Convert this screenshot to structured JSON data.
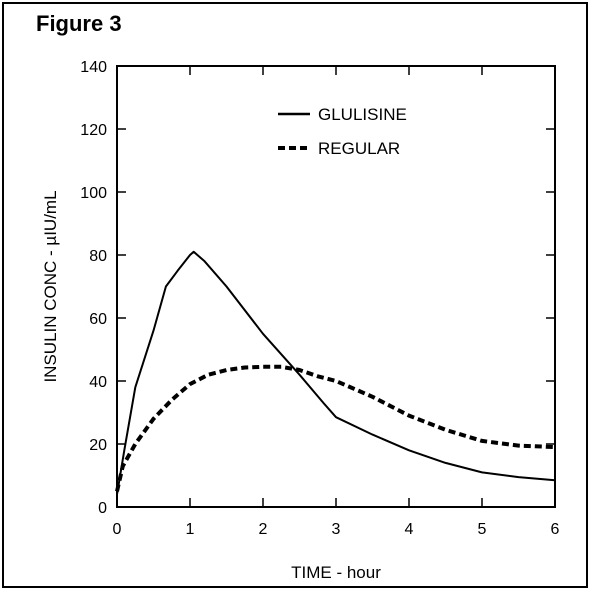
{
  "figure_label": "Figure 3",
  "colors": {
    "line": "#000000",
    "background": "#ffffff"
  },
  "chart_data": {
    "type": "line",
    "title": "",
    "xlabel": "TIME - hour",
    "ylabel": "INSULIN CONC - µIU/mL",
    "xlim": [
      0,
      6
    ],
    "ylim": [
      0,
      140
    ],
    "xticks": [
      0,
      1,
      2,
      3,
      4,
      5,
      6
    ],
    "yticks": [
      0,
      20,
      40,
      60,
      80,
      100,
      120,
      140
    ],
    "grid": false,
    "legend": "top-center",
    "series": [
      {
        "name": "GLULISINE",
        "style": "solid",
        "points": [
          [
            0,
            4
          ],
          [
            0.1,
            18
          ],
          [
            0.25,
            38
          ],
          [
            0.5,
            56
          ],
          [
            0.67,
            70
          ],
          [
            0.83,
            75
          ],
          [
            1.0,
            80
          ],
          [
            1.05,
            81
          ],
          [
            1.2,
            78
          ],
          [
            1.5,
            70
          ],
          [
            2.0,
            55
          ],
          [
            2.5,
            42
          ],
          [
            2.83,
            33
          ],
          [
            3.0,
            28.5
          ],
          [
            3.5,
            23
          ],
          [
            4.0,
            18
          ],
          [
            4.5,
            14
          ],
          [
            5.0,
            11
          ],
          [
            5.5,
            9.5
          ],
          [
            6.0,
            8.5
          ]
        ]
      },
      {
        "name": "REGULAR",
        "style": "dashed",
        "points": [
          [
            0,
            5
          ],
          [
            0.08,
            13
          ],
          [
            0.25,
            20
          ],
          [
            0.5,
            28
          ],
          [
            0.75,
            34
          ],
          [
            1.0,
            39
          ],
          [
            1.25,
            42
          ],
          [
            1.5,
            43.5
          ],
          [
            1.75,
            44.3
          ],
          [
            2.0,
            44.5
          ],
          [
            2.25,
            44.5
          ],
          [
            2.5,
            43.5
          ],
          [
            2.75,
            41.5
          ],
          [
            3.0,
            40
          ],
          [
            3.5,
            35
          ],
          [
            4.0,
            29
          ],
          [
            4.5,
            24.5
          ],
          [
            5.0,
            21
          ],
          [
            5.5,
            19.5
          ],
          [
            6.0,
            19
          ]
        ]
      }
    ]
  }
}
